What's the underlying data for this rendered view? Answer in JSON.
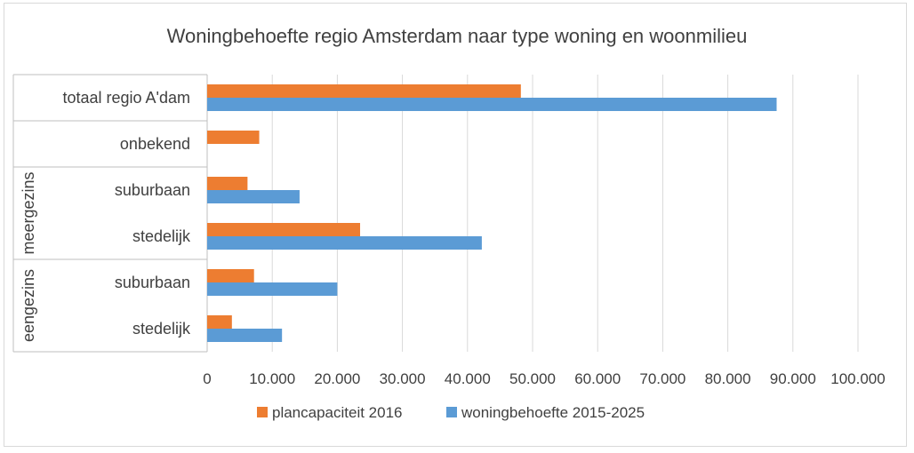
{
  "chart_data": {
    "type": "bar",
    "orientation": "horizontal",
    "title": "Woningbehoefte regio Amsterdam naar type woning en woonmilieu",
    "categories": [
      "totaal regio A'dam",
      "onbekend",
      "suburbaan",
      "stedelijk",
      "suburbaan",
      "stedelijk"
    ],
    "groups": [
      {
        "label": "meergezins",
        "categories": [
          2,
          3
        ]
      },
      {
        "label": "eengezins",
        "categories": [
          4,
          5
        ]
      }
    ],
    "series": [
      {
        "name": "plancapaciteit 2016",
        "color": "#ED7D31",
        "values": [
          48200,
          8000,
          6200,
          23500,
          7200,
          3800
        ]
      },
      {
        "name": "woningbehoefte 2015-2025",
        "color": "#5B9BD5",
        "values": [
          87500,
          null,
          14200,
          42200,
          20000,
          11500
        ]
      }
    ],
    "xlim": [
      0,
      100000
    ],
    "xticks": [
      "0",
      "10.000",
      "20.000",
      "30.000",
      "40.000",
      "50.000",
      "60.000",
      "70.000",
      "80.000",
      "90.000",
      "100.000"
    ],
    "grid": true,
    "legend_position": "bottom"
  }
}
